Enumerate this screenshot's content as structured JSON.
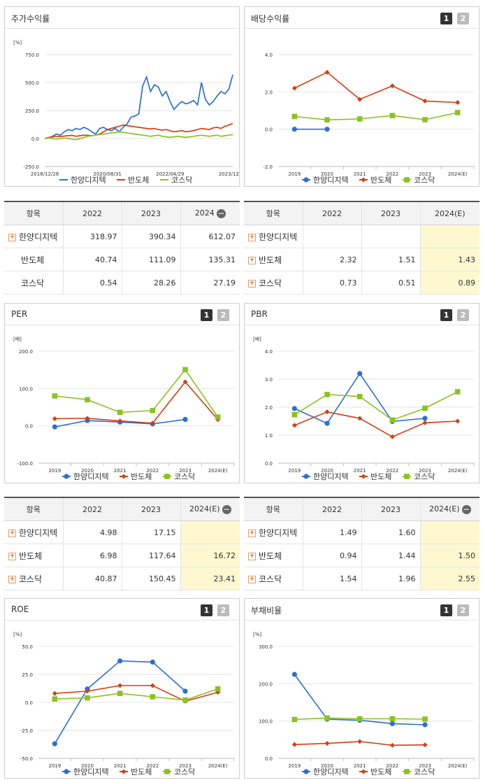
{
  "colors": {
    "hanyang": "#2b6fd6",
    "semi": "#d63e12",
    "kosdaq": "#8cc21f",
    "highlight": "#fdf8d0"
  },
  "panels": [
    {
      "title": "주가수익률",
      "has_buttons": false,
      "buttons": [],
      "chart_data": {
        "type": "line",
        "unit": "[%]",
        "ylim": [
          -250,
          750
        ],
        "yticks": [
          "750.0",
          "500.0",
          "250.0",
          "0.0",
          "-250.0"
        ],
        "xlabels": [
          "2018/12/28",
          "2020/08/31",
          "2022/04/29",
          "2023/12/28"
        ],
        "series": [
          {
            "name": "한양디지텍",
            "marker": "none",
            "values": [
              0,
              5,
              20,
              40,
              30,
              60,
              80,
              70,
              90,
              80,
              100,
              85,
              60,
              40,
              90,
              100,
              80,
              70,
              90,
              60,
              100,
              130,
              190,
              200,
              220,
              470,
              550,
              420,
              480,
              460,
              380,
              420,
              330,
              260,
              300,
              330,
              310,
              320,
              340,
              300,
              500,
              350,
              300,
              330,
              380,
              420,
              400,
              440,
              570
            ]
          },
          {
            "name": "반도체",
            "marker": "none",
            "values": [
              0,
              10,
              15,
              20,
              18,
              22,
              25,
              28,
              20,
              25,
              30,
              28,
              25,
              30,
              40,
              60,
              80,
              90,
              100,
              110,
              120,
              115,
              110,
              105,
              100,
              95,
              90,
              85,
              90,
              80,
              75,
              80,
              70,
              60,
              65,
              70,
              60,
              65,
              70,
              80,
              90,
              85,
              80,
              95,
              100,
              90,
              110,
              120,
              135
            ]
          },
          {
            "name": "코스닥",
            "marker": "none",
            "values": [
              0,
              5,
              0,
              -5,
              0,
              5,
              0,
              -5,
              -10,
              0,
              10,
              20,
              25,
              30,
              35,
              40,
              45,
              50,
              55,
              60,
              55,
              50,
              45,
              40,
              35,
              30,
              25,
              20,
              25,
              30,
              20,
              15,
              10,
              15,
              20,
              15,
              10,
              15,
              20,
              25,
              30,
              25,
              20,
              25,
              30,
              20,
              25,
              30,
              35
            ]
          }
        ]
      },
      "legend": [
        "한양디지텍",
        "반도체",
        "코스닥"
      ],
      "table": {
        "headers": [
          "항목",
          "2022",
          "2023",
          "2024"
        ],
        "header_minus": true,
        "rows": [
          {
            "label": "한양디지텍",
            "plus": true,
            "values": [
              "318.97",
              "390.34",
              "612.07"
            ]
          },
          {
            "label": "반도체",
            "plus": false,
            "values": [
              "40.74",
              "111.09",
              "135.31"
            ]
          },
          {
            "label": "코스닥",
            "plus": false,
            "values": [
              "0.54",
              "28.26",
              "27.19"
            ]
          }
        ],
        "highlight_last": false
      }
    },
    {
      "title": "배당수익률",
      "has_buttons": true,
      "buttons": [
        "1",
        "2"
      ],
      "chart_data": {
        "type": "line",
        "unit": "",
        "ylim": [
          -2,
          4
        ],
        "yticks": [
          "4.0",
          "2.0",
          "0.0",
          "-2.0"
        ],
        "xlabels": [
          "2019",
          "2020",
          "2021",
          "2022",
          "2023",
          "2024(E)"
        ],
        "series": [
          {
            "name": "한양디지텍",
            "marker": "circle",
            "values": [
              0,
              0,
              null,
              null,
              null,
              null
            ]
          },
          {
            "name": "반도체",
            "marker": "diamond",
            "values": [
              2.2,
              3.05,
              1.6,
              2.32,
              1.51,
              1.43
            ]
          },
          {
            "name": "코스닥",
            "marker": "square",
            "values": [
              0.68,
              0.5,
              0.55,
              0.73,
              0.51,
              0.89
            ]
          }
        ]
      },
      "legend": [
        "한양디지텍",
        "반도체",
        "코스닥"
      ],
      "table": {
        "headers": [
          "항목",
          "2022",
          "2023",
          "2024(E)"
        ],
        "header_minus": false,
        "rows": [
          {
            "label": "한양디지텍",
            "plus": true,
            "values": [
              "",
              "",
              ""
            ]
          },
          {
            "label": "반도체",
            "plus": true,
            "values": [
              "2.32",
              "1.51",
              "1.43"
            ]
          },
          {
            "label": "코스닥",
            "plus": true,
            "values": [
              "0.73",
              "0.51",
              "0.89"
            ]
          }
        ],
        "highlight_last": true
      }
    },
    {
      "title": "PER",
      "has_buttons": true,
      "buttons": [
        "1",
        "2"
      ],
      "chart_data": {
        "type": "line",
        "unit": "[배]",
        "ylim": [
          -100,
          200
        ],
        "yticks": [
          "200.0",
          "100.0",
          "0.0",
          "-100.0"
        ],
        "xlabels": [
          "2019",
          "2020",
          "2021",
          "2022",
          "2023",
          "2024(E)"
        ],
        "series": [
          {
            "name": "한양디지텍",
            "marker": "circle",
            "values": [
              -3,
              14,
              10,
              4.98,
              17.15,
              null
            ]
          },
          {
            "name": "반도체",
            "marker": "diamond",
            "values": [
              19,
              20,
              13,
              6.98,
              117.64,
              16.72
            ]
          },
          {
            "name": "코스닥",
            "marker": "square",
            "values": [
              80,
              70,
              36,
              40.87,
              150.45,
              23.41
            ]
          }
        ]
      },
      "legend": [
        "한양디지텍",
        "반도체",
        "코스닥"
      ],
      "table": {
        "headers": [
          "항목",
          "2022",
          "2023",
          "2024(E)"
        ],
        "header_minus": true,
        "rows": [
          {
            "label": "한양디지텍",
            "plus": true,
            "values": [
              "4.98",
              "17.15",
              ""
            ]
          },
          {
            "label": "반도체",
            "plus": true,
            "values": [
              "6.98",
              "117.64",
              "16.72"
            ]
          },
          {
            "label": "코스닥",
            "plus": true,
            "values": [
              "40.87",
              "150.45",
              "23.41"
            ]
          }
        ],
        "highlight_last": true
      }
    },
    {
      "title": "PBR",
      "has_buttons": true,
      "buttons": [
        "1",
        "2"
      ],
      "chart_data": {
        "type": "line",
        "unit": "[배]",
        "ylim": [
          0,
          4
        ],
        "yticks": [
          "4.0",
          "3.0",
          "2.0",
          "1.0",
          "0.0"
        ],
        "xlabels": [
          "2019",
          "2020",
          "2021",
          "2022",
          "2023",
          "2024(E)"
        ],
        "series": [
          {
            "name": "한양디지텍",
            "marker": "circle",
            "values": [
              1.95,
              1.42,
              3.2,
              1.49,
              1.6,
              null
            ]
          },
          {
            "name": "반도체",
            "marker": "diamond",
            "values": [
              1.35,
              1.83,
              1.6,
              0.94,
              1.44,
              1.5
            ]
          },
          {
            "name": "코스닥",
            "marker": "square",
            "values": [
              1.73,
              2.45,
              2.38,
              1.54,
              1.96,
              2.55
            ]
          }
        ]
      },
      "legend": [
        "한양디지텍",
        "반도체",
        "코스닥"
      ],
      "table": {
        "headers": [
          "항목",
          "2022",
          "2023",
          "2024(E)"
        ],
        "header_minus": true,
        "rows": [
          {
            "label": "한양디지텍",
            "plus": true,
            "values": [
              "1.49",
              "1.60",
              ""
            ]
          },
          {
            "label": "반도체",
            "plus": true,
            "values": [
              "0.94",
              "1.44",
              "1.50"
            ]
          },
          {
            "label": "코스닥",
            "plus": true,
            "values": [
              "1.54",
              "1.96",
              "2.55"
            ]
          }
        ],
        "highlight_last": true
      }
    },
    {
      "title": "ROE",
      "has_buttons": true,
      "buttons": [
        "1",
        "2"
      ],
      "chart_data": {
        "type": "line",
        "unit": "[%]",
        "ylim": [
          -50,
          50
        ],
        "yticks": [
          "50.0",
          "25.0",
          "0.0",
          "-25.0",
          "-50.0"
        ],
        "xlabels": [
          "2019",
          "2020",
          "2021",
          "2022",
          "2023",
          "2024(E)"
        ],
        "series": [
          {
            "name": "한양디지텍",
            "marker": "circle",
            "values": [
              -37,
              12,
              37,
              36,
              10,
              null
            ]
          },
          {
            "name": "반도체",
            "marker": "diamond",
            "values": [
              8,
              10,
              15,
              15,
              1,
              9
            ]
          },
          {
            "name": "코스닥",
            "marker": "square",
            "values": [
              3,
              4,
              8,
              5,
              2,
              12
            ]
          }
        ]
      },
      "legend": [
        "한양디지텍",
        "반도체",
        "코스닥"
      ],
      "table": null
    },
    {
      "title": "부채비율",
      "has_buttons": true,
      "buttons": [
        "1",
        "2"
      ],
      "chart_data": {
        "type": "line",
        "unit": "[%]",
        "ylim": [
          0,
          300
        ],
        "yticks": [
          "300.0",
          "200.0",
          "100.0",
          "0.0"
        ],
        "xlabels": [
          "2019",
          "2020",
          "2021",
          "2022",
          "2023",
          "2024(E)"
        ],
        "series": [
          {
            "name": "한양디지텍",
            "marker": "circle",
            "values": [
              225,
              105,
              102,
              93,
              90,
              null
            ]
          },
          {
            "name": "반도체",
            "marker": "diamond",
            "values": [
              37,
              40,
              45,
              35,
              36,
              null
            ]
          },
          {
            "name": "코스닥",
            "marker": "square",
            "values": [
              104,
              108,
              106,
              106,
              105,
              null
            ]
          }
        ]
      },
      "legend": [
        "한양디지텍",
        "반도체",
        "코스닥"
      ],
      "table": null
    }
  ]
}
